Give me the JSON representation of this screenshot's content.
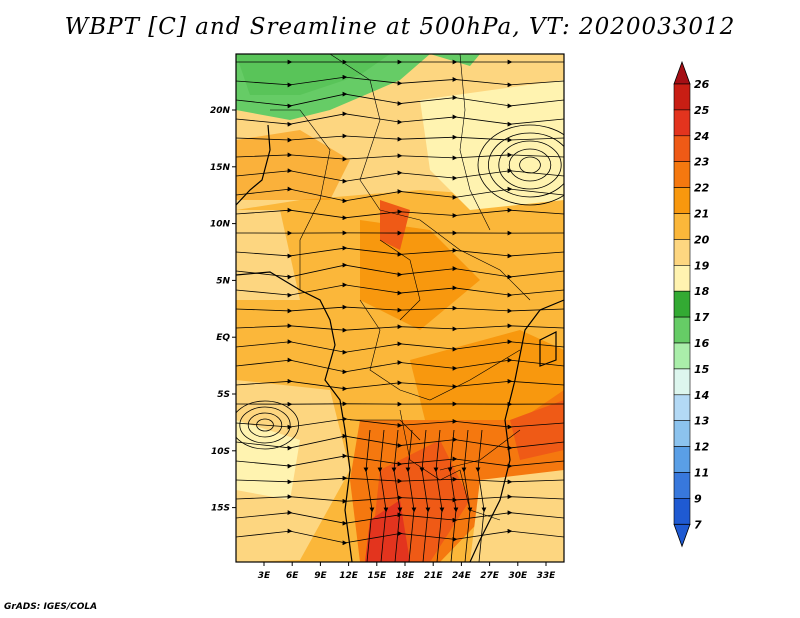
{
  "title": "WBPT [C] and Sreamline at 500hPa, VT: 2020033012",
  "footer": "GrADS: IGES/COLA",
  "map": {
    "lat_labels": [
      "20N",
      "15N",
      "10N",
      "5N",
      "EQ",
      "5S",
      "10S",
      "15S"
    ],
    "lon_labels": [
      "3E",
      "6E",
      "9E",
      "12E",
      "15E",
      "18E",
      "21E",
      "24E",
      "27E",
      "30E",
      "33E"
    ]
  },
  "colorbar": {
    "labels": [
      "26",
      "25",
      "24",
      "23",
      "22",
      "21",
      "20",
      "19",
      "18",
      "17",
      "16",
      "15",
      "14",
      "13",
      "12",
      "11",
      "9",
      "7"
    ],
    "colors": [
      "#a50f15",
      "#c81e14",
      "#e3341e",
      "#ef5a16",
      "#f5780f",
      "#f8980e",
      "#fbb73a",
      "#fdd680",
      "#fff3b0",
      "#33aa33",
      "#66cc66",
      "#aaeeaa",
      "#ddf6ee",
      "#b3d9f5",
      "#8cc3ee",
      "#5a9fe6",
      "#3878dc",
      "#1f5ad2"
    ]
  }
}
